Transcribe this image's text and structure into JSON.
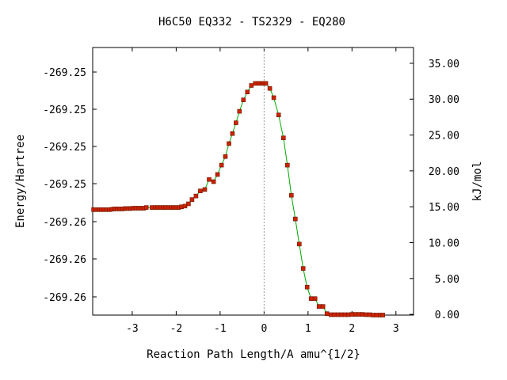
{
  "chart_data": {
    "type": "scatter",
    "title": "H6C50   EQ332 - TS2329 - EQ280",
    "xlabel": "Reaction Path Length/A amu^{1/2}",
    "ylabel": "Energy/Hartree",
    "y2label": "kJ/mol",
    "xlim": [
      -3.9,
      3.4
    ],
    "y2lim": [
      -0.1,
      37.2
    ],
    "grid": false,
    "legend": "none",
    "ts_marker_x": 0.0,
    "x_ticks": [
      "-3",
      "-2",
      "-1",
      "0",
      "1",
      "2",
      "3"
    ],
    "y_tick_labels": [
      "-269.25",
      "-269.25",
      "-269.25",
      "-269.25",
      "-269.26",
      "-269.26",
      "-269.26",
      "-269.26"
    ],
    "y2_ticks": [
      "35.00",
      "30.00",
      "25.00",
      "20.00",
      "15.00",
      "10.00",
      "5.00",
      "0.00"
    ],
    "colors": {
      "line": "#00aa00",
      "marker": "#cc2200",
      "marker_edge": "#6a1a00",
      "ts_line": "#999999"
    },
    "series": [
      {
        "x": [
          -3.88,
          -3.82,
          -3.76,
          -3.7,
          -3.64,
          -3.58,
          -3.52,
          -3.46,
          -3.4,
          -3.34,
          -3.28,
          -3.22,
          -3.16,
          -3.1,
          -3.04,
          -2.98,
          -2.92,
          -2.86,
          -2.8,
          -2.74,
          -2.68,
          -2.55,
          -2.48,
          -2.42,
          -2.36,
          -2.3,
          -2.24,
          -2.18,
          -2.12,
          -2.06,
          -2.0,
          -1.94,
          -1.88,
          -1.8,
          -1.72,
          -1.64,
          -1.55,
          -1.45,
          -1.35,
          -1.25,
          -1.15,
          -1.06,
          -0.97,
          -0.88,
          -0.8,
          -0.72,
          -0.64,
          -0.56,
          -0.47,
          -0.38,
          -0.29,
          -0.2,
          -0.11,
          -0.04,
          0.0,
          0.04,
          0.13,
          0.22,
          0.33,
          0.44,
          0.53,
          0.62,
          0.71,
          0.8,
          0.89,
          0.98,
          1.07,
          1.16,
          1.25,
          1.34,
          1.43,
          1.52,
          1.6,
          1.68,
          1.76,
          1.84,
          1.92,
          2.0,
          2.08,
          2.16,
          2.24,
          2.32,
          2.4,
          2.48,
          2.56,
          2.64,
          2.7
        ],
        "y": [
          14.6,
          14.6,
          14.6,
          14.6,
          14.6,
          14.6,
          14.6,
          14.65,
          14.7,
          14.7,
          14.7,
          14.7,
          14.75,
          14.75,
          14.75,
          14.8,
          14.8,
          14.8,
          14.8,
          14.8,
          14.9,
          14.9,
          14.9,
          14.9,
          14.9,
          14.9,
          14.9,
          14.9,
          14.9,
          14.9,
          14.9,
          14.9,
          15.0,
          15.1,
          15.4,
          16.0,
          16.5,
          17.2,
          17.4,
          18.8,
          18.5,
          19.5,
          20.8,
          22.0,
          23.8,
          25.2,
          26.7,
          28.3,
          29.9,
          31.0,
          31.9,
          32.2,
          32.2,
          32.2,
          32.2,
          32.2,
          31.5,
          30.2,
          27.8,
          24.6,
          20.8,
          16.6,
          13.3,
          9.8,
          6.4,
          3.8,
          2.2,
          2.2,
          1.1,
          1.1,
          0.1,
          -0.05,
          -0.05,
          -0.05,
          -0.05,
          -0.05,
          -0.05,
          0.0,
          0.0,
          0.0,
          0.0,
          -0.05,
          -0.05,
          -0.1,
          -0.1,
          -0.1,
          -0.1
        ]
      }
    ]
  }
}
